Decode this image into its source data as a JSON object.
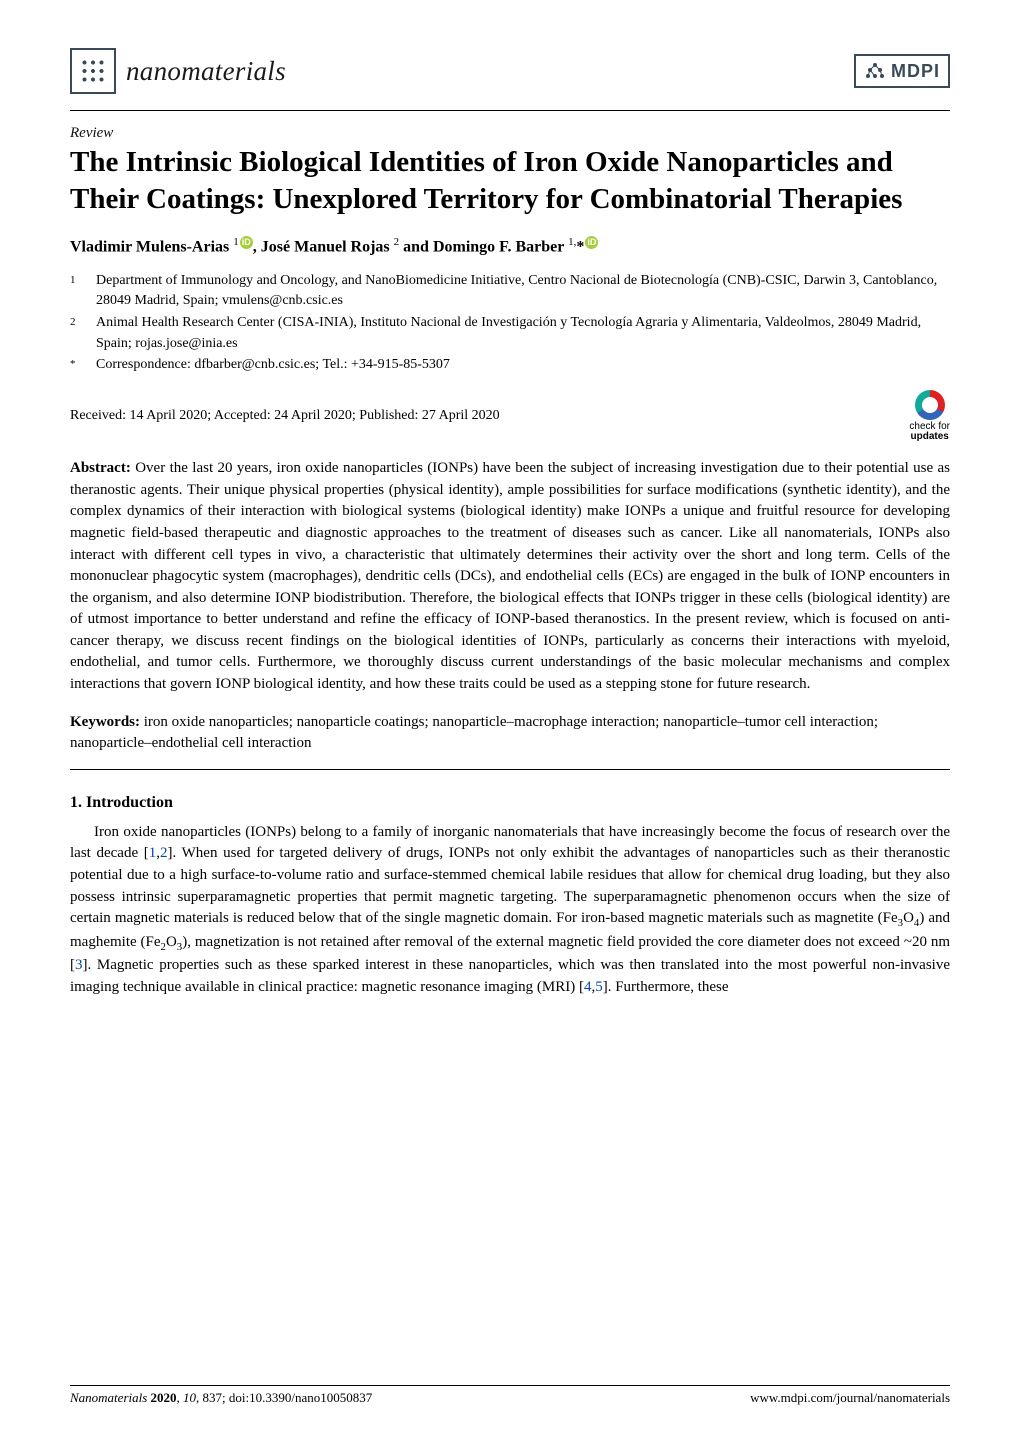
{
  "header": {
    "journal_name": "nanomaterials",
    "publisher_logo_text": "MDPI"
  },
  "article": {
    "type": "Review",
    "title": "The Intrinsic Biological Identities of Iron Oxide Nanoparticles and Their Coatings: Unexplored Territory for Combinatorial Therapies",
    "authors_html": "Vladimir Mulens-Arias <sup>1</sup><span class=\"orcid\">iD</span>, José Manuel Rojas <sup>2</sup> and Domingo F. Barber <sup>1,</sup>*<span class=\"orcid\">iD</span>",
    "affiliations": [
      {
        "num": "1",
        "text": "Department of Immunology and Oncology, and NanoBiomedicine Initiative, Centro Nacional de Biotecnología (CNB)-CSIC, Darwin 3, Cantoblanco, 28049 Madrid, Spain; vmulens@cnb.csic.es"
      },
      {
        "num": "2",
        "text": "Animal Health Research Center (CISA-INIA), Instituto Nacional de Investigación y Tecnología Agraria y Alimentaria, Valdeolmos, 28049 Madrid, Spain; rojas.jose@inia.es"
      },
      {
        "num": "*",
        "text": "Correspondence: dfbarber@cnb.csic.es; Tel.: +34-915-85-5307"
      }
    ],
    "dates": "Received: 14 April 2020; Accepted: 24 April 2020; Published: 27 April 2020",
    "check_updates": {
      "line1": "check for",
      "line2": "updates"
    },
    "abstract_label": "Abstract:",
    "abstract": " Over the last 20 years, iron oxide nanoparticles (IONPs) have been the subject of increasing investigation due to their potential use as theranostic agents. Their unique physical properties (physical identity), ample possibilities for surface modifications (synthetic identity), and the complex dynamics of their interaction with biological systems (biological identity) make IONPs a unique and fruitful resource for developing magnetic field-based therapeutic and diagnostic approaches to the treatment of diseases such as cancer. Like all nanomaterials, IONPs also interact with different cell types in vivo, a characteristic that ultimately determines their activity over the short and long term. Cells of the mononuclear phagocytic system (macrophages), dendritic cells (DCs), and endothelial cells (ECs) are engaged in the bulk of IONP encounters in the organism, and also determine IONP biodistribution. Therefore, the biological effects that IONPs trigger in these cells (biological identity) are of utmost importance to better understand and refine the efficacy of IONP-based theranostics. In the present review, which is focused on anti-cancer therapy, we discuss recent findings on the biological identities of IONPs, particularly as concerns their interactions with myeloid, endothelial, and tumor cells. Furthermore, we thoroughly discuss current understandings of the basic molecular mechanisms and complex interactions that govern IONP biological identity, and how these traits could be used as a stepping stone for future research.",
    "keywords_label": "Keywords:",
    "keywords": " iron oxide nanoparticles; nanoparticle coatings; nanoparticle–macrophage interaction; nanoparticle–tumor cell interaction; nanoparticle–endothelial cell interaction",
    "section1_heading": "1. Introduction",
    "section1_body_html": "Iron oxide nanoparticles (IONPs) belong to a family of inorganic nanomaterials that have increasingly become the focus of research over the last decade [<span class=\"ref-link\">1</span>,<span class=\"ref-link\">2</span>]. When used for targeted delivery of drugs, IONPs not only exhibit the advantages of nanoparticles such as their theranostic potential due to a high surface-to-volume ratio and surface-stemmed chemical labile residues that allow for chemical drug loading, but they also possess intrinsic superparamagnetic properties that permit magnetic targeting. The superparamagnetic phenomenon occurs when the size of certain magnetic materials is reduced below that of the single magnetic domain. For iron-based magnetic materials such as magnetite (Fe<sub>3</sub>O<sub>4</sub>) and maghemite (Fe<sub>2</sub>O<sub>3</sub>), magnetization is not retained after removal of the external magnetic field provided the core diameter does not exceed ~20 nm [<span class=\"ref-link\">3</span>]. Magnetic properties such as these sparked interest in these nanoparticles, which was then translated into the most powerful non-invasive imaging technique available in clinical practice: magnetic resonance imaging (MRI) [<span class=\"ref-link\">4</span>,<span class=\"ref-link\">5</span>]. Furthermore, these"
  },
  "footer": {
    "journal": "Nanomaterials",
    "year": "2020",
    "volume": "10",
    "article_num": "837",
    "doi": "doi:10.3390/nano10050837",
    "url": "www.mdpi.com/journal/nanomaterials"
  },
  "colors": {
    "orcid_bg": "#A6CE39",
    "ref_link": "#0645AD",
    "logo_border": "#3a4a5a"
  }
}
